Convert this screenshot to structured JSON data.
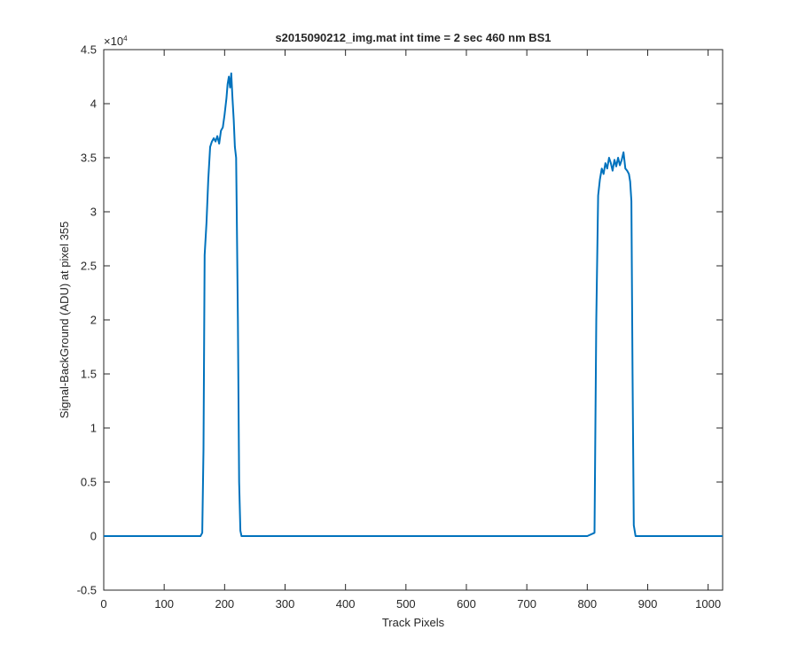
{
  "chart_data": {
    "type": "line",
    "title": "s2015090212_img.mat int time = 2 sec  460 nm BS1",
    "xlabel": "Track Pixels",
    "ylabel": "Signal-BackGround (ADU) at pixel 355",
    "xlim": [
      0,
      1024
    ],
    "ylim": [
      -5000,
      45000
    ],
    "x_ticks": [
      0,
      100,
      200,
      300,
      400,
      500,
      600,
      700,
      800,
      900,
      1000
    ],
    "y_ticks": [
      -0.5,
      0,
      0.5,
      1,
      1.5,
      2,
      2.5,
      3,
      3.5,
      4,
      4.5
    ],
    "y_exponent_label": "×10",
    "y_exponent_power": "4",
    "grid": false,
    "legend": "none",
    "line_color": "#0072bd",
    "series": [
      {
        "x": [
          0,
          50,
          100,
          150,
          160,
          163,
          165,
          167,
          170,
          173,
          176,
          179,
          182,
          185,
          188,
          191,
          194,
          197,
          200,
          203,
          205,
          207,
          209,
          211,
          213,
          215,
          217,
          219,
          220,
          222,
          224,
          226,
          228,
          232,
          250,
          300,
          400,
          500,
          600,
          700,
          800,
          812,
          815,
          818,
          821,
          824,
          827,
          830,
          833,
          836,
          839,
          842,
          845,
          848,
          851,
          854,
          857,
          860,
          863,
          866,
          869,
          871,
          873,
          875,
          877,
          880,
          900,
          950,
          1000,
          1024
        ],
        "y": [
          0,
          0,
          0,
          0,
          0,
          300,
          8000,
          26000,
          29000,
          33000,
          36000,
          36500,
          36800,
          36500,
          37000,
          36300,
          37500,
          37800,
          39000,
          40500,
          41800,
          42500,
          41500,
          42800,
          40500,
          38500,
          36000,
          35000,
          30000,
          20000,
          5000,
          500,
          0,
          0,
          0,
          0,
          0,
          0,
          0,
          0,
          0,
          300,
          20000,
          31500,
          33000,
          34000,
          33500,
          34500,
          34000,
          35000,
          34500,
          33800,
          34800,
          34200,
          35000,
          34300,
          34800,
          35500,
          34000,
          33800,
          33500,
          32800,
          31000,
          15000,
          1000,
          0,
          0,
          0,
          0,
          0
        ]
      }
    ]
  }
}
